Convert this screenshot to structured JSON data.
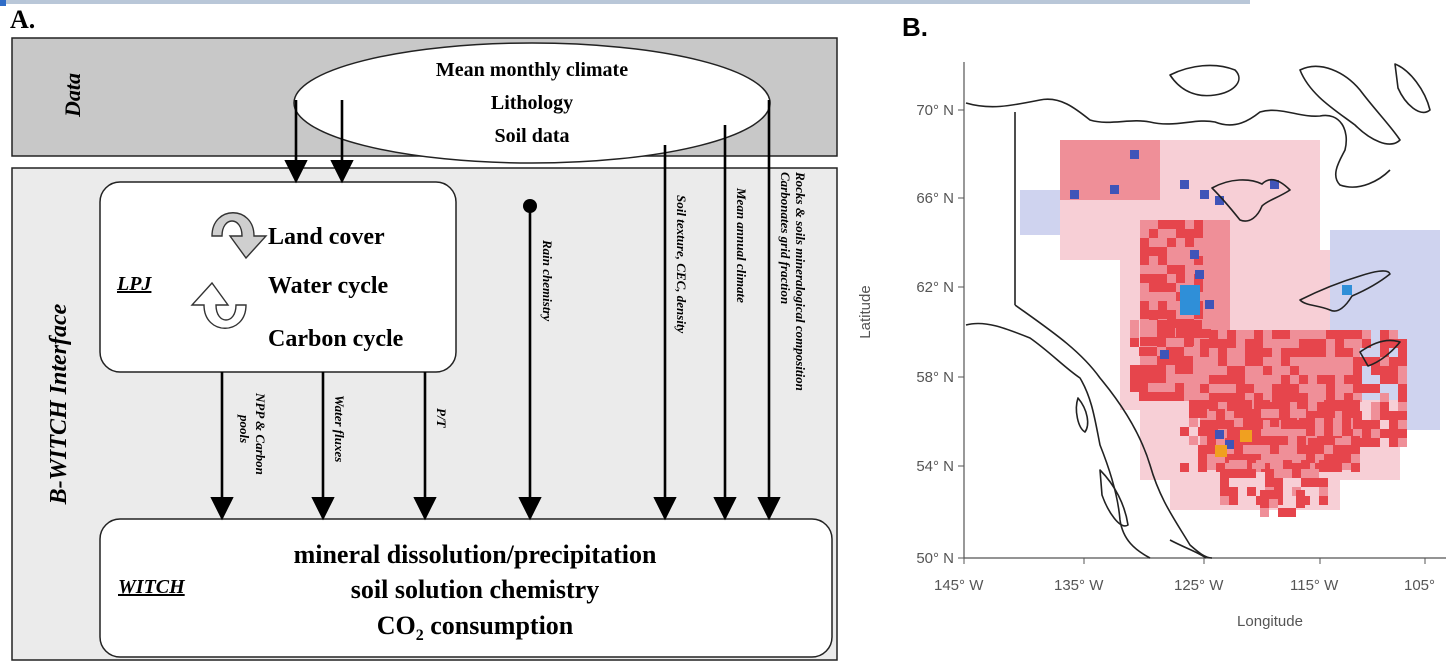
{
  "panel_a": {
    "label": "A.",
    "data_band": {
      "label": "Data",
      "items": [
        "Mean monthly climate",
        "Lithology",
        "Soil data"
      ]
    },
    "interface_label": "B-WITCH Interface",
    "lpj": {
      "label": "LPJ",
      "items": [
        "Land cover",
        "Water cycle",
        "Carbon cycle"
      ]
    },
    "vertical_labels": {
      "npp_line1": "NPP & Carbon",
      "npp_line2": "pools",
      "water_fluxes": "Water fluxes",
      "pt": "P/T",
      "rain_chemistry": "Rain chemistry",
      "soil_texture": "Soil texture, CEC, density",
      "mean_annual_climate": "Mean annual climate",
      "rocks_line1": "Rocks & soils mineralogical composition",
      "rocks_line2": "Carbonates grid fraction"
    },
    "witch": {
      "label": "WITCH",
      "line1": "mineral dissolution/precipitation",
      "line2": "soil solution chemistry",
      "line3_main": "CO",
      "line3_sub": "2",
      "line3_rest": " consumption"
    }
  },
  "panel_b": {
    "label": "B.",
    "ylabel": "Latitude",
    "xlabel": "Longitude",
    "yticks": [
      "70° N",
      "66° N",
      "62° N",
      "58° N",
      "54° N",
      "50° N"
    ],
    "xticks": [
      "145° W",
      "135° W",
      "125° W",
      "115° W",
      "105°"
    ],
    "colors": {
      "light_pink": "#f7cfd6",
      "pink": "#ef8f98",
      "red": "#e6454c",
      "light_blue": "#cfd3ef",
      "blue": "#3f54b8",
      "cyan": "#2f8fd8",
      "orange": "#f0a020"
    }
  }
}
